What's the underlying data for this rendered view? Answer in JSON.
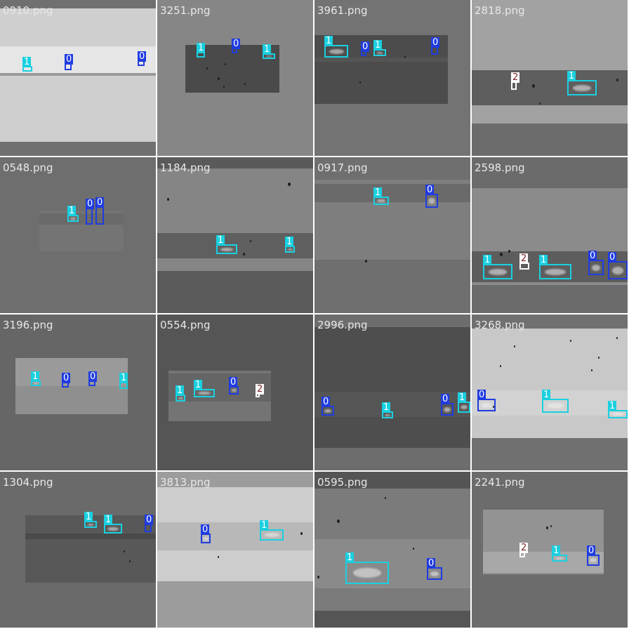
{
  "colors": {
    "class_0": "#1f3ce0",
    "class_1": "#19d0e0",
    "class_2_box": "#ffffff",
    "class_2_text": "#7a1f1f",
    "filename_text": "#e8e8e8",
    "grid_gap": "#ffffff"
  },
  "tiles": [
    {
      "filename": "0910.png",
      "detections": [
        {
          "label": "1"
        },
        {
          "label": "0"
        },
        {
          "label": "0"
        }
      ]
    },
    {
      "filename": "3251.png",
      "detections": [
        {
          "label": "1"
        },
        {
          "label": "0"
        },
        {
          "label": "1"
        }
      ]
    },
    {
      "filename": "3961.png",
      "detections": [
        {
          "label": "1"
        },
        {
          "label": "0"
        },
        {
          "label": "1"
        },
        {
          "label": "0"
        }
      ]
    },
    {
      "filename": "2818.png",
      "detections": [
        {
          "label": "2"
        },
        {
          "label": "1"
        }
      ]
    },
    {
      "filename": "0548.png",
      "detections": [
        {
          "label": "1"
        },
        {
          "label": "0"
        },
        {
          "label": "0"
        }
      ]
    },
    {
      "filename": "1184.png",
      "detections": [
        {
          "label": "1"
        },
        {
          "label": "1"
        }
      ]
    },
    {
      "filename": "0917.png",
      "detections": [
        {
          "label": "1"
        },
        {
          "label": "0"
        }
      ]
    },
    {
      "filename": "2598.png",
      "detections": [
        {
          "label": "1"
        },
        {
          "label": "2"
        },
        {
          "label": "1"
        },
        {
          "label": "0"
        },
        {
          "label": "0"
        }
      ]
    },
    {
      "filename": "3196.png",
      "detections": [
        {
          "label": "1"
        },
        {
          "label": "0"
        },
        {
          "label": "0"
        },
        {
          "label": "1"
        }
      ]
    },
    {
      "filename": "0554.png",
      "detections": [
        {
          "label": "1"
        },
        {
          "label": "1"
        },
        {
          "label": "0"
        },
        {
          "label": "2"
        }
      ]
    },
    {
      "filename": "2996.png",
      "detections": [
        {
          "label": "0"
        },
        {
          "label": "1"
        },
        {
          "label": "0"
        },
        {
          "label": "1"
        }
      ]
    },
    {
      "filename": "3268.png",
      "detections": [
        {
          "label": "0"
        },
        {
          "label": "1"
        },
        {
          "label": "1"
        }
      ]
    },
    {
      "filename": "1304.png",
      "detections": [
        {
          "label": "1"
        },
        {
          "label": "1"
        },
        {
          "label": "0"
        }
      ]
    },
    {
      "filename": "3813.png",
      "detections": [
        {
          "label": "0"
        },
        {
          "label": "1"
        }
      ]
    },
    {
      "filename": "0595.png",
      "detections": [
        {
          "label": "1"
        },
        {
          "label": "0"
        }
      ]
    },
    {
      "filename": "2241.png",
      "detections": [
        {
          "label": "2"
        },
        {
          "label": "1"
        },
        {
          "label": "0"
        }
      ]
    }
  ]
}
